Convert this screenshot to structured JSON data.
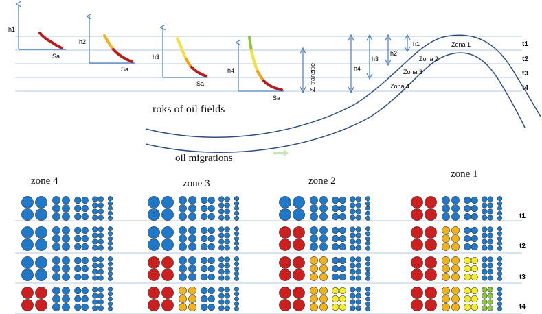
{
  "top": {
    "axes_h_labels": [
      "h1",
      "h2",
      "h3",
      "h4"
    ],
    "axis_x_label": "Sa",
    "zone_labels": [
      "Zona 1",
      "Zona 2",
      "Zona 3",
      "Zona 4"
    ],
    "time_labels": [
      "t1",
      "t2",
      "t3",
      "t4"
    ],
    "right_h_labels": [
      "h1",
      "h2",
      "h3",
      "h4"
    ],
    "transition_label": "Z. tranzitie",
    "roks_label": "roks of oil fields",
    "migration_label": "oil migrations"
  },
  "bottom": {
    "zones": [
      {
        "label": "zone 4",
        "rows": [
          [
            "b",
            "b",
            "b",
            "b",
            "b"
          ],
          [
            "b",
            "b",
            "b",
            "b",
            "b"
          ],
          [
            "b",
            "b",
            "b",
            "b",
            "b"
          ],
          [
            "r",
            "b",
            "b",
            "b",
            "b"
          ]
        ]
      },
      {
        "label": "zone 3",
        "rows": [
          [
            "b",
            "b",
            "b",
            "b",
            "b"
          ],
          [
            "b",
            "b",
            "b",
            "b",
            "b"
          ],
          [
            "r",
            "b",
            "b",
            "b",
            "b"
          ],
          [
            "r",
            "o",
            "b",
            "b",
            "b"
          ]
        ]
      },
      {
        "label": "zone 2",
        "rows": [
          [
            "b",
            "b",
            "b",
            "b",
            "b"
          ],
          [
            "r",
            "b",
            "b",
            "b",
            "b"
          ],
          [
            "r",
            "o",
            "b",
            "b",
            "b"
          ],
          [
            "r",
            "o",
            "y",
            "b",
            "b"
          ]
        ]
      },
      {
        "label": "zone 1",
        "rows": [
          [
            "r",
            "b",
            "b",
            "b",
            "b"
          ],
          [
            "r",
            "o",
            "b",
            "b",
            "b"
          ],
          [
            "r",
            "o",
            "y",
            "b",
            "b"
          ],
          [
            "r",
            "o",
            "y",
            "g",
            "b"
          ]
        ]
      }
    ],
    "time_labels": [
      "t1",
      "t2",
      "t3",
      "t4"
    ]
  },
  "colors": {
    "axis": "#4a7fc1",
    "b": "#1f78c8",
    "r": "#cc1f1f",
    "o": "#f2b21b",
    "y": "#f4ee2a",
    "g": "#8cc63f",
    "line": "#b7c9dd",
    "curve": "#2e4e7e"
  }
}
